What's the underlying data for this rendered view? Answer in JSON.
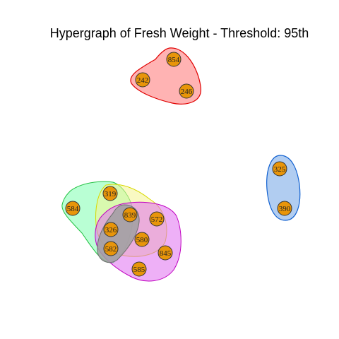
{
  "title": "Hypergraph of Fresh Weight - Threshold: 95th",
  "node_color": "#E8950A",
  "nodes": [
    {
      "id": "854"
    },
    {
      "id": "242"
    },
    {
      "id": "246"
    },
    {
      "id": "325"
    },
    {
      "id": "390"
    },
    {
      "id": "584"
    },
    {
      "id": "319"
    },
    {
      "id": "839"
    },
    {
      "id": "572"
    },
    {
      "id": "326"
    },
    {
      "id": "580"
    },
    {
      "id": "582"
    },
    {
      "id": "845"
    },
    {
      "id": "585"
    }
  ],
  "hyperedges": [
    {
      "color": "#FF0000",
      "members": [
        "854",
        "242",
        "246"
      ]
    },
    {
      "color": "#0066CC",
      "members": [
        "325",
        "390"
      ]
    },
    {
      "color": "#00CC33",
      "members": [
        "584",
        "319",
        "839",
        "326",
        "582"
      ]
    },
    {
      "color": "#DDDD00",
      "members": [
        "319",
        "839",
        "572",
        "326",
        "580",
        "582"
      ]
    },
    {
      "color": "#CC00CC",
      "members": [
        "839",
        "572",
        "326",
        "580",
        "582",
        "845",
        "585"
      ]
    },
    {
      "color": "#555555",
      "members": [
        "839",
        "326",
        "582"
      ]
    }
  ]
}
